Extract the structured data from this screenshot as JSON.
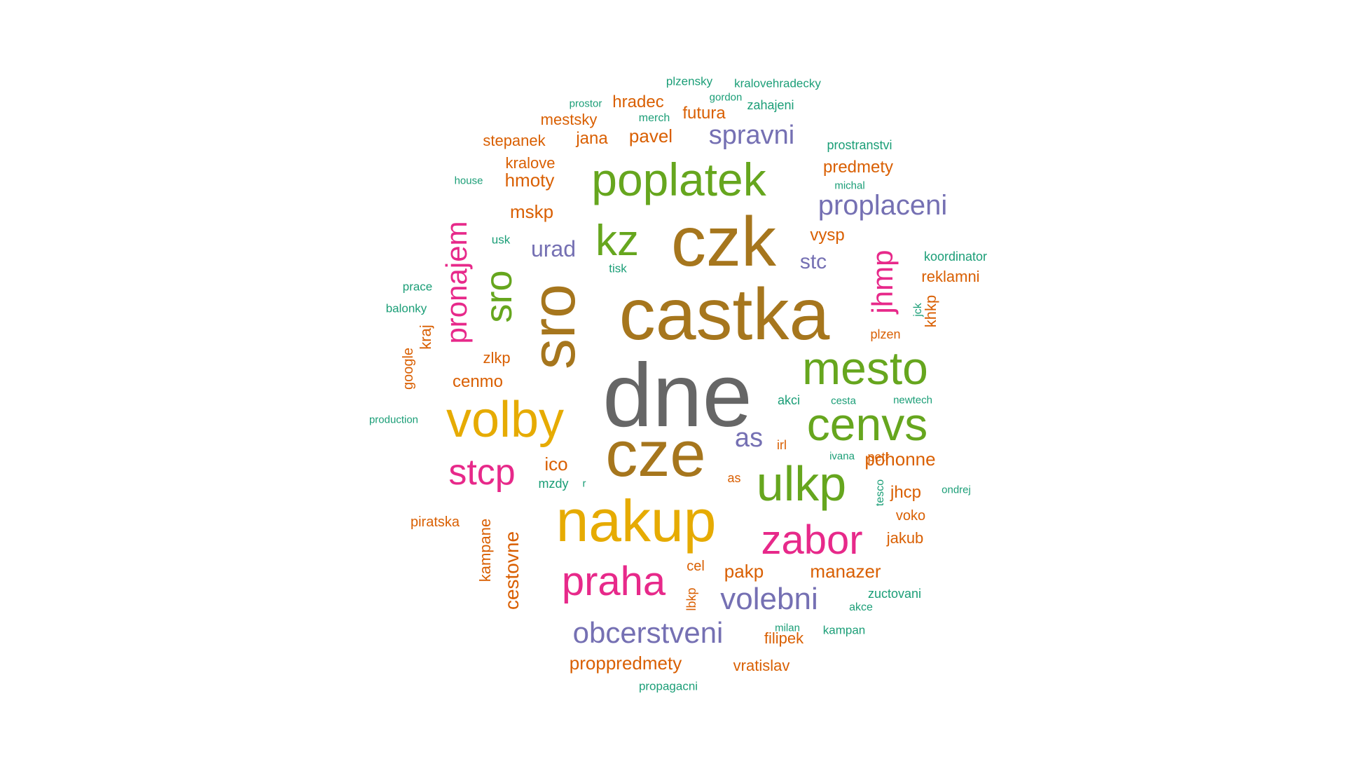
{
  "palette": {
    "gray": "#666666",
    "brown": "#A6761D",
    "gold": "#E6AB02",
    "green": "#66A61E",
    "magenta": "#E7298A",
    "purple": "#7570B3",
    "orange": "#D95F02",
    "teal": "#1B9E77"
  },
  "words": [
    {
      "text": "dne",
      "color": "gray"
    },
    {
      "text": "castka",
      "color": "brown"
    },
    {
      "text": "czk",
      "color": "brown"
    },
    {
      "text": "cze",
      "color": "brown"
    },
    {
      "text": "sro",
      "color": "brown"
    },
    {
      "text": "nakup",
      "color": "gold"
    },
    {
      "text": "volby",
      "color": "gold"
    },
    {
      "text": "poplatek",
      "color": "green"
    },
    {
      "text": "mesto",
      "color": "green"
    },
    {
      "text": "cenvs",
      "color": "green"
    },
    {
      "text": "ulkp",
      "color": "green"
    },
    {
      "text": "kz",
      "color": "green"
    },
    {
      "text": "sro",
      "color": "green"
    },
    {
      "text": "zabor",
      "color": "magenta"
    },
    {
      "text": "praha",
      "color": "magenta"
    },
    {
      "text": "stcp",
      "color": "magenta"
    },
    {
      "text": "pronajem",
      "color": "magenta"
    },
    {
      "text": "jhmp",
      "color": "magenta"
    },
    {
      "text": "volebni",
      "color": "purple"
    },
    {
      "text": "obcerstveni",
      "color": "purple"
    },
    {
      "text": "proplaceni",
      "color": "purple"
    },
    {
      "text": "spravni",
      "color": "purple"
    },
    {
      "text": "urad",
      "color": "purple"
    },
    {
      "text": "as",
      "color": "purple"
    },
    {
      "text": "stc",
      "color": "purple"
    },
    {
      "text": "manazer",
      "color": "orange"
    },
    {
      "text": "pakp",
      "color": "orange"
    },
    {
      "text": "proppredmety",
      "color": "orange"
    },
    {
      "text": "pohonne",
      "color": "orange"
    },
    {
      "text": "cestovne",
      "color": "orange"
    },
    {
      "text": "kampane",
      "color": "orange"
    },
    {
      "text": "predmety",
      "color": "orange"
    },
    {
      "text": "vysp",
      "color": "orange"
    },
    {
      "text": "mskp",
      "color": "orange"
    },
    {
      "text": "hmoty",
      "color": "orange"
    },
    {
      "text": "pavel",
      "color": "orange"
    },
    {
      "text": "jana",
      "color": "orange"
    },
    {
      "text": "stepanek",
      "color": "orange"
    },
    {
      "text": "mestsky",
      "color": "orange"
    },
    {
      "text": "hradec",
      "color": "orange"
    },
    {
      "text": "futura",
      "color": "orange"
    },
    {
      "text": "kralove",
      "color": "orange"
    },
    {
      "text": "reklamni",
      "color": "orange"
    },
    {
      "text": "khkp",
      "color": "orange"
    },
    {
      "text": "plzen",
      "color": "orange"
    },
    {
      "text": "cenmo",
      "color": "orange"
    },
    {
      "text": "zlkp",
      "color": "orange"
    },
    {
      "text": "kraj",
      "color": "orange"
    },
    {
      "text": "google",
      "color": "orange"
    },
    {
      "text": "ico",
      "color": "orange"
    },
    {
      "text": "irl",
      "color": "orange"
    },
    {
      "text": "as",
      "color": "orange"
    },
    {
      "text": "petr",
      "color": "orange"
    },
    {
      "text": "jhcp",
      "color": "orange"
    },
    {
      "text": "voko",
      "color": "orange"
    },
    {
      "text": "jakub",
      "color": "orange"
    },
    {
      "text": "cel",
      "color": "orange"
    },
    {
      "text": "lbkp",
      "color": "orange"
    },
    {
      "text": "filipek",
      "color": "orange"
    },
    {
      "text": "vratislav",
      "color": "orange"
    },
    {
      "text": "piratska",
      "color": "orange"
    },
    {
      "text": "plzensky",
      "color": "teal"
    },
    {
      "text": "kralovehradecky",
      "color": "teal"
    },
    {
      "text": "prostor",
      "color": "teal"
    },
    {
      "text": "gordon",
      "color": "teal"
    },
    {
      "text": "zahajeni",
      "color": "teal"
    },
    {
      "text": "merch",
      "color": "teal"
    },
    {
      "text": "prostranstvi",
      "color": "teal"
    },
    {
      "text": "michal",
      "color": "teal"
    },
    {
      "text": "house",
      "color": "teal"
    },
    {
      "text": "usk",
      "color": "teal"
    },
    {
      "text": "tisk",
      "color": "teal"
    },
    {
      "text": "koordinator",
      "color": "teal"
    },
    {
      "text": "prace",
      "color": "teal"
    },
    {
      "text": "balonky",
      "color": "teal"
    },
    {
      "text": "jck",
      "color": "teal"
    },
    {
      "text": "akci",
      "color": "teal"
    },
    {
      "text": "cesta",
      "color": "teal"
    },
    {
      "text": "newtech",
      "color": "teal"
    },
    {
      "text": "production",
      "color": "teal"
    },
    {
      "text": "ivana",
      "color": "teal"
    },
    {
      "text": "mzdy",
      "color": "teal"
    },
    {
      "text": "r",
      "color": "teal"
    },
    {
      "text": "tesco",
      "color": "teal"
    },
    {
      "text": "ondrej",
      "color": "teal"
    },
    {
      "text": "zuctovani",
      "color": "teal"
    },
    {
      "text": "akce",
      "color": "teal"
    },
    {
      "text": "milan",
      "color": "teal"
    },
    {
      "text": "kampan",
      "color": "teal"
    },
    {
      "text": "propagacni",
      "color": "teal"
    }
  ]
}
